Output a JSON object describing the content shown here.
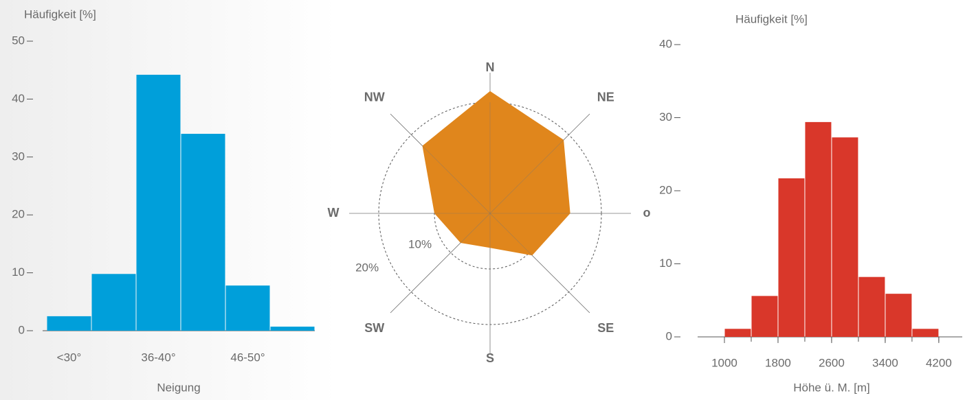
{
  "chart_data": [
    {
      "type": "bar",
      "y_label": "Häufigkeit [%]",
      "x_label": "Neigung",
      "categories": [
        "<30°",
        null,
        "36-40°",
        null,
        "46-50°",
        null
      ],
      "values": [
        2.5,
        9.8,
        44.2,
        34,
        7.8,
        0.7
      ],
      "color": "#009fda",
      "ylim": [
        0,
        50
      ],
      "yticks": [
        0,
        10,
        20,
        30,
        40,
        50
      ]
    },
    {
      "type": "radar",
      "categories": [
        "N",
        "NE",
        "o",
        "SE",
        "S",
        "SW",
        "W",
        "NW"
      ],
      "values": [
        22,
        18.7,
        14.4,
        10.7,
        6.2,
        7.5,
        10,
        17.2
      ],
      "color": "#e0861c",
      "rlim": [
        0,
        20
      ],
      "rticks": [
        {
          "value": 10,
          "label": "10%"
        },
        {
          "value": 20,
          "label": "20%"
        }
      ]
    },
    {
      "type": "histogram",
      "y_label": "Häufigkeit [%]",
      "x_label": "Höhe ü. M. [m]",
      "bins": [
        1000,
        1400,
        1800,
        2200,
        2600,
        3000,
        3400,
        3800,
        4200
      ],
      "values": [
        1.1,
        5.6,
        21.7,
        29.4,
        27.3,
        8.2,
        5.9,
        1.1
      ],
      "color": "#d9372a",
      "xlim": [
        600,
        4550
      ],
      "xticks": [
        1000,
        1800,
        2600,
        3400,
        4200
      ],
      "ylim": [
        0,
        40
      ],
      "yticks": [
        0,
        10,
        20,
        30,
        40
      ]
    }
  ]
}
